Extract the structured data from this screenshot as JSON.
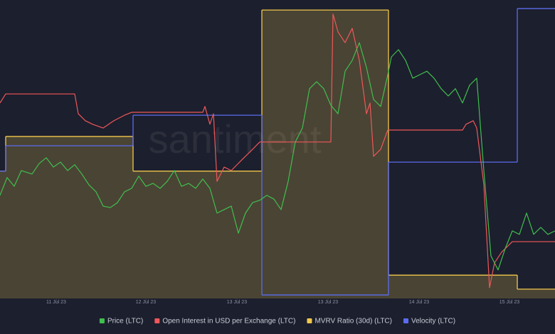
{
  "chart_data": {
    "type": "line",
    "watermark": "santiment",
    "xlim": [
      0,
      780
    ],
    "ylim": [
      0,
      100
    ],
    "xticks": [
      {
        "value": 79,
        "label": "11 Jul 23"
      },
      {
        "value": 205,
        "label": "12 Jul 23"
      },
      {
        "value": 333,
        "label": "13 Jul 23"
      },
      {
        "value": 461,
        "label": "13 Jul 23"
      },
      {
        "value": 589,
        "label": "14 Jul 23"
      },
      {
        "value": 716,
        "label": "15 Jul 23"
      }
    ],
    "series": [
      {
        "name": "Price (LTC)",
        "color": "#3fbf4f",
        "step": false,
        "fill": false,
        "x": [
          0,
          10,
          20,
          30,
          45,
          55,
          65,
          75,
          85,
          95,
          105,
          115,
          125,
          135,
          145,
          155,
          165,
          175,
          185,
          195,
          205,
          215,
          225,
          235,
          245,
          255,
          265,
          275,
          285,
          295,
          305,
          315,
          325,
          335,
          345,
          355,
          365,
          375,
          385,
          395,
          405,
          415,
          425,
          435,
          445,
          455,
          465,
          475,
          485,
          495,
          505,
          515,
          525,
          535,
          545,
          550,
          560,
          570,
          580,
          590,
          600,
          610,
          620,
          630,
          640,
          650,
          660,
          670,
          680,
          690,
          700,
          710,
          720,
          730,
          740,
          750,
          760,
          770,
          780
        ],
        "values": [
          35.4,
          41.5,
          38.5,
          43.9,
          42.7,
          46.3,
          48.3,
          45.1,
          46.8,
          43.9,
          45.9,
          42.7,
          39,
          36.6,
          31.7,
          31.2,
          32.9,
          36.6,
          37.8,
          42,
          38.5,
          39.5,
          37.8,
          40.2,
          43.9,
          38.5,
          39.5,
          37.8,
          41,
          37.8,
          29.3,
          30.5,
          31.7,
          22.4,
          29.3,
          32.9,
          33.7,
          35.4,
          34.1,
          30.5,
          40.2,
          53.7,
          58.5,
          72,
          74.4,
          72,
          66.3,
          63.4,
          78,
          81.7,
          87.8,
          79.3,
          68.3,
          65.9,
          76.8,
          82.9,
          85.4,
          81.7,
          75.6,
          76.8,
          78,
          75.6,
          72,
          69.5,
          72,
          67.1,
          73.2,
          75.6,
          43.9,
          14.6,
          9.8,
          17.1,
          23.2,
          22,
          29.3,
          22,
          24.4,
          22,
          23.2
        ]
      },
      {
        "name": "Open Interest in USD per Exchange (LTC)",
        "color": "#f0575a",
        "step": false,
        "fill": false,
        "x": [
          0,
          8,
          105,
          110,
          120,
          130,
          145,
          160,
          175,
          185,
          195,
          285,
          288,
          295,
          300,
          305,
          315,
          325,
          340,
          355,
          365,
          465,
          468,
          475,
          485,
          495,
          505,
          515,
          520,
          525,
          535,
          545,
          650,
          655,
          665,
          670,
          680,
          688,
          695,
          705,
          720,
          780
        ],
        "values": [
          67.1,
          70.2,
          70.2,
          63.4,
          61,
          59.8,
          58.5,
          61,
          62.9,
          63.9,
          63.9,
          63.9,
          65.9,
          59.8,
          63.4,
          40.2,
          45.1,
          43.9,
          47.6,
          51.2,
          53.7,
          53.7,
          97.6,
          91.5,
          87.8,
          92.7,
          81.7,
          63.4,
          67.1,
          48.8,
          51.2,
          57.8,
          57.8,
          59.8,
          61,
          58.5,
          39,
          3.7,
          12.2,
          15.9,
          19.5,
          19.5
        ]
      },
      {
        "name": "MVRV Ratio (30d) (LTC)",
        "color": "#f2c94c",
        "step": true,
        "fill": true,
        "x": [
          0,
          8,
          187,
          368,
          546,
          727
        ],
        "values": [
          43.7,
          55.6,
          43.7,
          99,
          8,
          3.2
        ]
      },
      {
        "name": "Velocity (LTC)",
        "color": "#5b6cf0",
        "step": true,
        "fill": false,
        "x": [
          0,
          8,
          187,
          368,
          546,
          727
        ],
        "values": [
          43.7,
          52.4,
          62.9,
          1.2,
          46.8,
          99.5
        ]
      }
    ]
  }
}
